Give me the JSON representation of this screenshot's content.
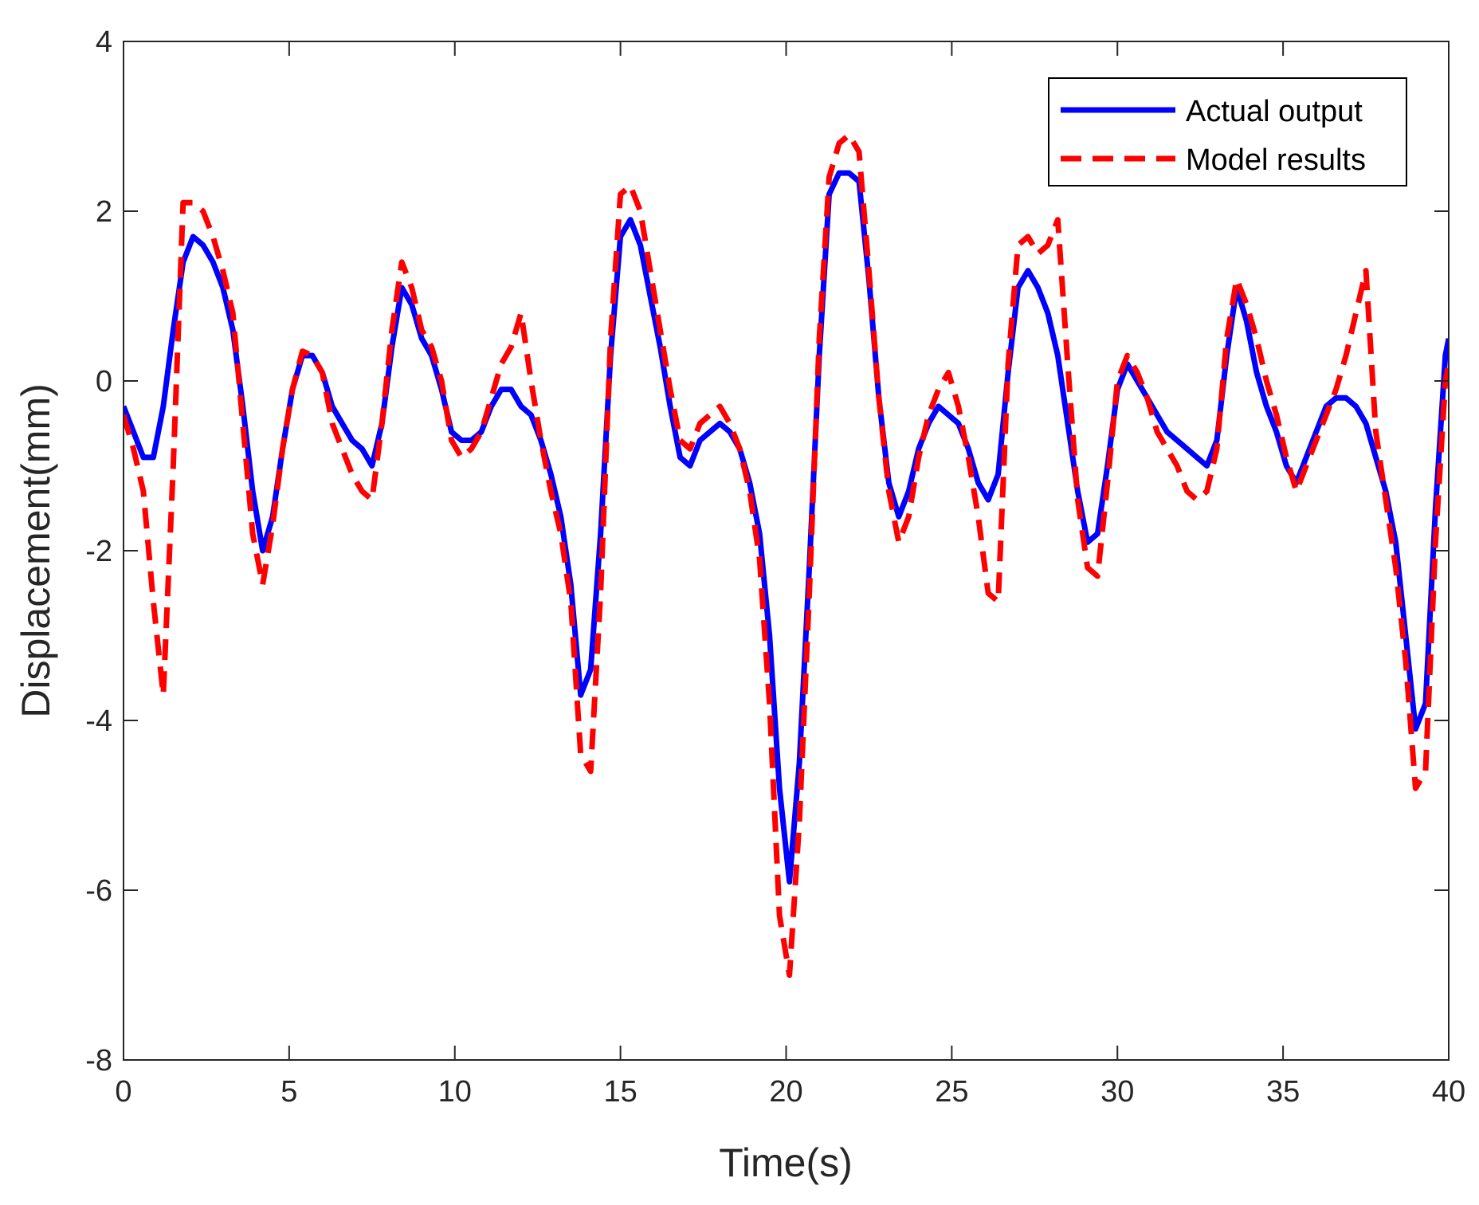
{
  "chart_data": {
    "type": "line",
    "xlabel": "Time(s)",
    "ylabel": "Displacement(mm)",
    "xlim": [
      0,
      40
    ],
    "ylim": [
      -8,
      4
    ],
    "xticks": [
      0,
      5,
      10,
      15,
      20,
      25,
      30,
      35,
      40
    ],
    "yticks": [
      -8,
      -6,
      -4,
      -2,
      0,
      2,
      4
    ],
    "grid": false,
    "legend_position": "top-right",
    "series": [
      {
        "name": "Actual output",
        "color": "#0000ff",
        "style": "solid",
        "x": [
          0,
          0.3,
          0.6,
          0.9,
          1.2,
          1.5,
          1.8,
          2.1,
          2.4,
          2.7,
          3.0,
          3.3,
          3.6,
          3.9,
          4.2,
          4.5,
          4.8,
          5.1,
          5.4,
          5.7,
          6.0,
          6.3,
          6.6,
          6.9,
          7.2,
          7.5,
          7.8,
          8.1,
          8.4,
          8.7,
          9.0,
          9.3,
          9.6,
          9.9,
          10.2,
          10.5,
          10.8,
          11.1,
          11.4,
          11.7,
          12.0,
          12.3,
          12.6,
          12.9,
          13.2,
          13.5,
          13.8,
          14.1,
          14.4,
          14.7,
          15.0,
          15.3,
          15.6,
          15.9,
          16.2,
          16.5,
          16.8,
          17.1,
          17.4,
          17.7,
          18.0,
          18.3,
          18.6,
          18.9,
          19.2,
          19.5,
          19.8,
          20.1,
          20.4,
          20.7,
          21.0,
          21.3,
          21.6,
          21.9,
          22.2,
          22.5,
          22.8,
          23.1,
          23.4,
          23.7,
          24.0,
          24.3,
          24.6,
          24.9,
          25.2,
          25.5,
          25.8,
          26.1,
          26.4,
          26.7,
          27.0,
          27.3,
          27.6,
          27.9,
          28.2,
          28.5,
          28.8,
          29.1,
          29.4,
          29.7,
          30.0,
          30.3,
          30.6,
          30.9,
          31.2,
          31.5,
          31.8,
          32.1,
          32.4,
          32.7,
          33.0,
          33.3,
          33.6,
          33.9,
          34.2,
          34.5,
          34.8,
          35.1,
          35.4,
          35.7,
          36.0,
          36.3,
          36.6,
          36.9,
          37.2,
          37.5,
          37.8,
          38.1,
          38.4,
          38.7,
          39.0,
          39.3,
          39.6,
          39.9,
          40
        ],
        "values": [
          -0.3,
          -0.6,
          -0.9,
          -0.9,
          -0.3,
          0.6,
          1.4,
          1.7,
          1.6,
          1.4,
          1.1,
          0.6,
          -0.3,
          -1.3,
          -2.0,
          -1.6,
          -0.8,
          -0.1,
          0.3,
          0.3,
          0.1,
          -0.3,
          -0.5,
          -0.7,
          -0.8,
          -1.0,
          -0.5,
          0.4,
          1.1,
          0.9,
          0.5,
          0.3,
          -0.1,
          -0.6,
          -0.7,
          -0.7,
          -0.6,
          -0.3,
          -0.1,
          -0.1,
          -0.3,
          -0.4,
          -0.7,
          -1.1,
          -1.6,
          -2.4,
          -3.7,
          -3.4,
          -1.8,
          0.3,
          1.7,
          1.9,
          1.6,
          1.0,
          0.4,
          -0.3,
          -0.9,
          -1.0,
          -0.7,
          -0.6,
          -0.5,
          -0.6,
          -0.8,
          -1.2,
          -1.8,
          -3.0,
          -4.8,
          -5.9,
          -4.5,
          -2.2,
          0.3,
          2.2,
          2.45,
          2.45,
          2.35,
          1.2,
          -0.2,
          -1.2,
          -1.6,
          -1.3,
          -0.8,
          -0.5,
          -0.3,
          -0.4,
          -0.5,
          -0.8,
          -1.2,
          -1.4,
          -1.1,
          0.1,
          1.1,
          1.3,
          1.1,
          0.8,
          0.3,
          -0.5,
          -1.3,
          -1.9,
          -1.8,
          -1.0,
          -0.1,
          0.2,
          0.0,
          -0.2,
          -0.4,
          -0.6,
          -0.7,
          -0.8,
          -0.9,
          -1.0,
          -0.7,
          0.3,
          1.1,
          0.7,
          0.1,
          -0.3,
          -0.6,
          -1.0,
          -1.2,
          -0.9,
          -0.6,
          -0.3,
          -0.2,
          -0.2,
          -0.3,
          -0.5,
          -0.9,
          -1.3,
          -1.9,
          -3.0,
          -4.1,
          -3.8,
          -1.5,
          0.3,
          0.5
        ]
      },
      {
        "name": "Model results",
        "color": "#ff0000",
        "style": "dashed",
        "x": [
          0,
          0.3,
          0.6,
          0.9,
          1.2,
          1.5,
          1.8,
          2.1,
          2.4,
          2.7,
          3.0,
          3.3,
          3.6,
          3.9,
          4.2,
          4.5,
          4.8,
          5.1,
          5.4,
          5.7,
          6.0,
          6.3,
          6.6,
          6.9,
          7.2,
          7.5,
          7.8,
          8.1,
          8.4,
          8.7,
          9.0,
          9.3,
          9.6,
          9.9,
          10.2,
          10.5,
          10.8,
          11.1,
          11.4,
          11.7,
          12.0,
          12.3,
          12.6,
          12.9,
          13.2,
          13.5,
          13.8,
          14.1,
          14.4,
          14.7,
          15.0,
          15.3,
          15.6,
          15.9,
          16.2,
          16.5,
          16.8,
          17.1,
          17.4,
          17.7,
          18.0,
          18.3,
          18.6,
          18.9,
          19.2,
          19.5,
          19.8,
          20.1,
          20.4,
          20.7,
          21.0,
          21.3,
          21.6,
          21.9,
          22.2,
          22.5,
          22.8,
          23.1,
          23.4,
          23.7,
          24.0,
          24.3,
          24.6,
          24.9,
          25.2,
          25.5,
          25.8,
          26.1,
          26.4,
          26.7,
          27.0,
          27.3,
          27.6,
          27.9,
          28.2,
          28.5,
          28.8,
          29.1,
          29.4,
          29.7,
          30.0,
          30.3,
          30.6,
          30.9,
          31.2,
          31.5,
          31.8,
          32.1,
          32.4,
          32.7,
          33.0,
          33.3,
          33.6,
          33.9,
          34.2,
          34.5,
          34.8,
          35.1,
          35.4,
          35.7,
          36.0,
          36.3,
          36.6,
          36.9,
          37.2,
          37.5,
          37.8,
          38.1,
          38.4,
          38.7,
          39.0,
          39.3,
          39.6,
          39.9,
          40
        ],
        "values": [
          -0.4,
          -0.8,
          -1.3,
          -2.6,
          -3.7,
          -1.0,
          2.1,
          2.1,
          2.0,
          1.7,
          1.3,
          0.8,
          -0.5,
          -1.8,
          -2.4,
          -1.7,
          -0.8,
          -0.1,
          0.35,
          0.3,
          0.1,
          -0.5,
          -0.8,
          -1.1,
          -1.3,
          -1.4,
          -0.5,
          0.6,
          1.4,
          1.1,
          0.6,
          0.4,
          0.0,
          -0.7,
          -0.9,
          -0.8,
          -0.6,
          -0.2,
          0.2,
          0.4,
          0.8,
          0.0,
          -0.7,
          -1.3,
          -1.8,
          -2.6,
          -4.4,
          -4.6,
          -2.5,
          0.5,
          2.2,
          2.3,
          2.0,
          1.3,
          0.6,
          -0.1,
          -0.7,
          -0.8,
          -0.5,
          -0.4,
          -0.3,
          -0.5,
          -0.8,
          -1.3,
          -2.1,
          -3.8,
          -6.3,
          -7.0,
          -5.2,
          -2.5,
          0.5,
          2.4,
          2.8,
          2.9,
          2.7,
          1.3,
          -0.2,
          -1.3,
          -1.9,
          -1.6,
          -0.9,
          -0.4,
          -0.1,
          0.1,
          -0.3,
          -0.9,
          -1.6,
          -2.5,
          -2.6,
          0.2,
          1.6,
          1.7,
          1.5,
          1.6,
          1.9,
          0.2,
          -1.4,
          -2.2,
          -2.3,
          -1.2,
          0.0,
          0.3,
          0.1,
          -0.2,
          -0.6,
          -0.8,
          -1.0,
          -1.3,
          -1.4,
          -1.3,
          -0.8,
          0.5,
          1.2,
          0.9,
          0.5,
          0.0,
          -0.4,
          -0.9,
          -1.3,
          -1.0,
          -0.7,
          -0.4,
          -0.1,
          0.3,
          0.8,
          1.3,
          -0.6,
          -1.4,
          -2.2,
          -3.3,
          -4.8,
          -4.6,
          -1.9,
          0.0,
          0.2
        ]
      }
    ]
  }
}
